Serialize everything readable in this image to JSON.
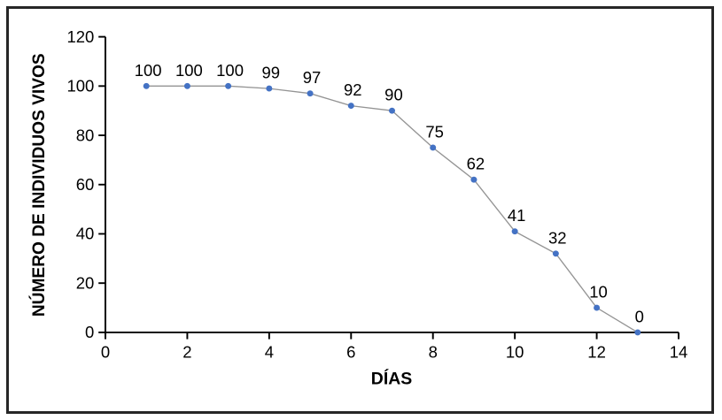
{
  "figure": {
    "background": "#ffffff",
    "border_color": "#262626"
  },
  "chart_data": {
    "type": "line",
    "title": "",
    "xlabel": "DÍAS",
    "ylabel": "NÚMERO DE INDIVIDUOS VIVOS",
    "x": [
      1,
      2,
      3,
      4,
      5,
      6,
      7,
      8,
      9,
      10,
      11,
      12,
      13
    ],
    "values": [
      100,
      100,
      100,
      99,
      97,
      92,
      90,
      75,
      62,
      41,
      32,
      10,
      0
    ],
    "data_labels": [
      "100",
      "100",
      "100",
      "99",
      "97",
      "92",
      "90",
      "75",
      "62",
      "41",
      "32",
      "10",
      "0"
    ],
    "xlim": [
      0,
      14
    ],
    "ylim": [
      0,
      120
    ],
    "x_ticks": [
      0,
      2,
      4,
      6,
      8,
      10,
      12,
      14
    ],
    "y_ticks": [
      0,
      20,
      40,
      60,
      80,
      100,
      120
    ],
    "grid": false,
    "legend": "none",
    "marker_color": "#4472C4",
    "line_color": "#949494",
    "axis_color": "#000000",
    "text_color": "#000000"
  }
}
